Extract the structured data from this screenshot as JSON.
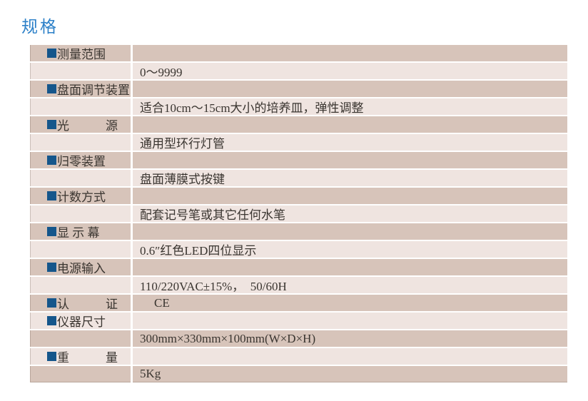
{
  "page": {
    "title": "规格"
  },
  "colors": {
    "title_blue": "#2c80c8",
    "accent_blue": "#15568b",
    "row_dark": "#d7c4ba",
    "row_light": "#efe4e0",
    "text_color": "#3a3530"
  },
  "table": {
    "rows": [
      {
        "label": "测量范围",
        "value": ""
      },
      {
        "label": "",
        "value": "0～9999"
      },
      {
        "label": "盘面调节装置",
        "value": ""
      },
      {
        "label": "",
        "value": "适合10cm～15cm大小的培养皿，弹性调整"
      },
      {
        "label": "光　　　源",
        "value": ""
      },
      {
        "label": "",
        "value": "通用型环行灯管"
      },
      {
        "label": "归零装置",
        "value": ""
      },
      {
        "label": "",
        "value": "盘面薄膜式按键"
      },
      {
        "label": "计数方式",
        "value": ""
      },
      {
        "label": "",
        "value": "配套记号笔或其它任何水笔"
      },
      {
        "label": "显 示 幕",
        "value": ""
      },
      {
        "label": "",
        "value": "0.6″红色LED四位显示"
      },
      {
        "label": "电源输入",
        "value": ""
      },
      {
        "label": "",
        "value": "110/220VAC±15%，  50/60H"
      },
      {
        "label": "认　　　证",
        "value": "CE"
      },
      {
        "label": "仪器尺寸",
        "value": ""
      },
      {
        "label": "",
        "value": "300mm×330mm×100mm(W×D×H)"
      },
      {
        "label": "重　　　量",
        "value": ""
      },
      {
        "label": "",
        "value": "5Kg"
      }
    ]
  }
}
